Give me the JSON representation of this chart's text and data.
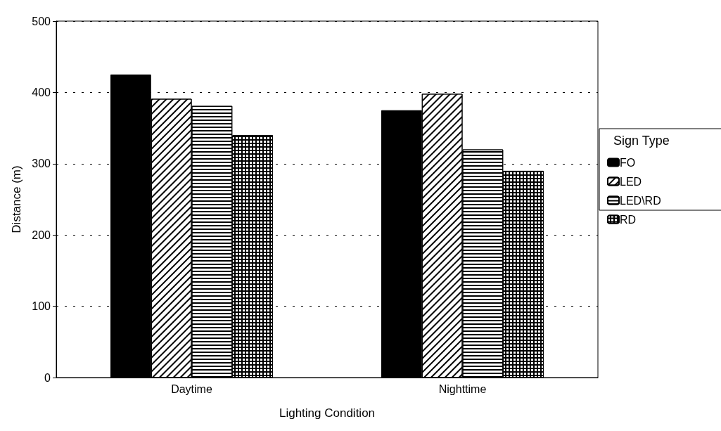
{
  "chart_data": {
    "type": "bar",
    "xlabel": "Lighting Condition",
    "ylabel": "Distance (m)",
    "legend_title": "Sign Type",
    "categories": [
      "Daytime",
      "Nighttime"
    ],
    "series": [
      {
        "name": "FO",
        "color": "#000000",
        "values": [
          425,
          375
        ]
      },
      {
        "name": "LED",
        "color": "#ffffff",
        "values": [
          391,
          398
        ]
      },
      {
        "name": "LED\\RD",
        "color": "#ffffff",
        "values": [
          381,
          320
        ]
      },
      {
        "name": "RD",
        "color": "#000000",
        "values": [
          340,
          290
        ]
      }
    ],
    "ylim": [
      0,
      500
    ],
    "yticks": [
      0,
      100,
      200,
      300,
      400,
      500
    ],
    "grid": "y",
    "legend": "right"
  }
}
